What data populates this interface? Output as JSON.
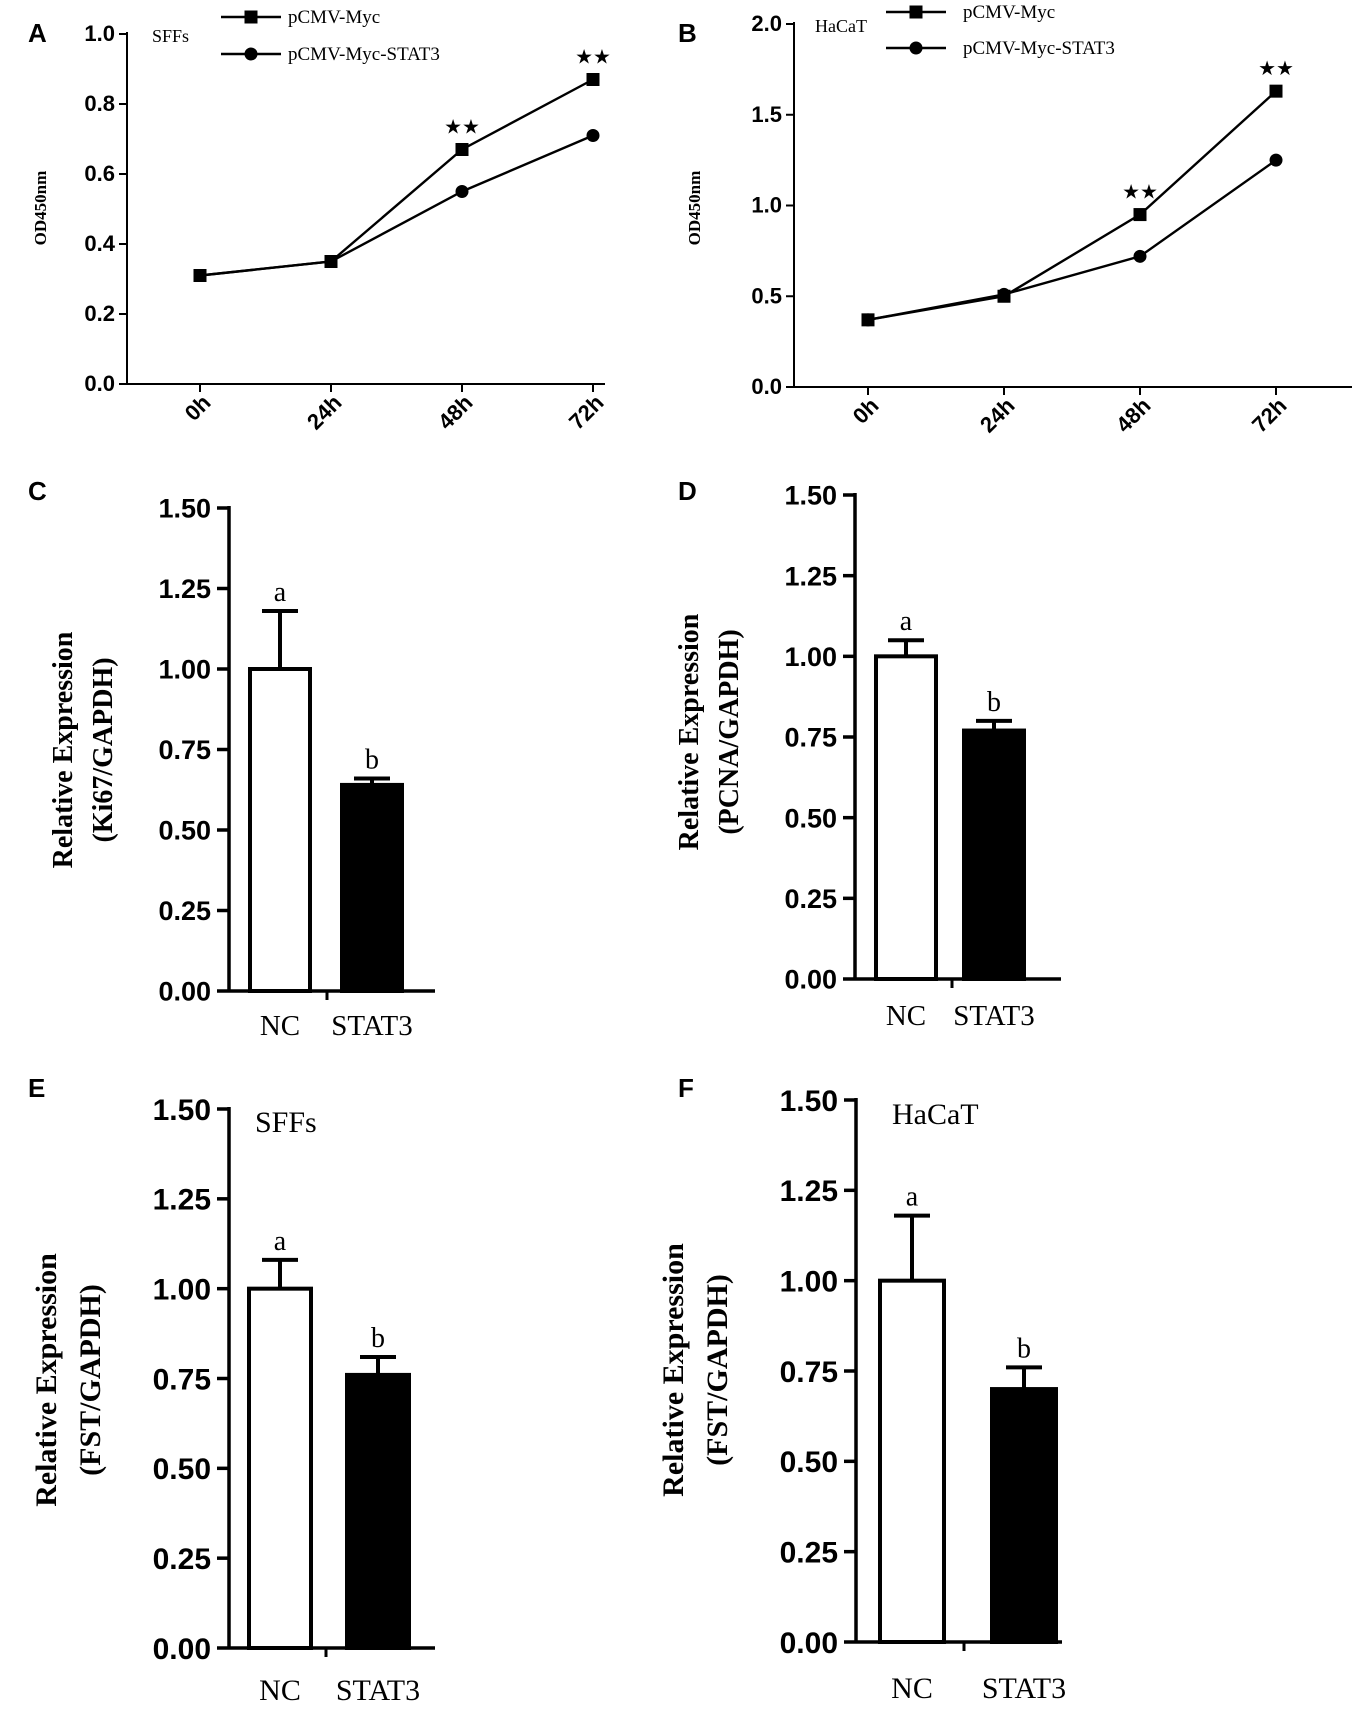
{
  "chart_data": [
    {
      "panel": "A",
      "type": "line",
      "cell_label": "SFFs",
      "categories": [
        "0h",
        "24h",
        "48h",
        "72h"
      ],
      "series": [
        {
          "name": "pCMV-Myc",
          "marker": "square",
          "values": [
            0.31,
            0.35,
            0.67,
            0.87
          ]
        },
        {
          "name": "pCMV-Myc-STAT3",
          "marker": "circle",
          "values": [
            0.31,
            0.35,
            0.55,
            0.71
          ]
        }
      ],
      "annotations": [
        {
          "category": "48h",
          "text": "★★",
          "y": 0.67
        },
        {
          "category": "72h",
          "text": "★★",
          "y": 0.87
        }
      ],
      "ylabel": "OD450nm",
      "ylim": [
        0,
        1.0
      ],
      "yticks": [
        "0.0",
        "0.2",
        "0.4",
        "0.6",
        "0.8",
        "1.0"
      ],
      "ytick_values": [
        0,
        0.2,
        0.4,
        0.6,
        0.8,
        1.0
      ]
    },
    {
      "panel": "B",
      "type": "line",
      "cell_label": "HaCaT",
      "categories": [
        "0h",
        "24h",
        "48h",
        "72h"
      ],
      "series": [
        {
          "name": "pCMV-Myc",
          "marker": "square",
          "values": [
            0.37,
            0.5,
            0.95,
            1.63
          ]
        },
        {
          "name": "pCMV-Myc-STAT3",
          "marker": "circle",
          "values": [
            0.37,
            0.51,
            0.72,
            1.25
          ]
        }
      ],
      "annotations": [
        {
          "category": "48h",
          "text": "★★",
          "y": 0.95
        },
        {
          "category": "72h",
          "text": "★★",
          "y": 1.63
        }
      ],
      "ylabel": "OD450nm",
      "ylim": [
        0,
        2.0
      ],
      "yticks": [
        "0.0",
        "0.5",
        "1.0",
        "1.5",
        "2.0"
      ],
      "ytick_values": [
        0,
        0.5,
        1.0,
        1.5,
        2.0
      ]
    },
    {
      "panel": "C",
      "type": "bar",
      "title": "",
      "categories": [
        "NC",
        "STAT3"
      ],
      "values": [
        1.0,
        0.64
      ],
      "errors": [
        0.18,
        0.02
      ],
      "letters": [
        "a",
        "b"
      ],
      "ylabel_lines": [
        "Relative Expression",
        "(Ki67/GAPDH)"
      ],
      "ylim": [
        0,
        1.5
      ],
      "yticks": [
        "0.00",
        "0.25",
        "0.50",
        "0.75",
        "1.00",
        "1.25",
        "1.50"
      ],
      "ytick_values": [
        0,
        0.25,
        0.5,
        0.75,
        1.0,
        1.25,
        1.5
      ]
    },
    {
      "panel": "D",
      "type": "bar",
      "title": "",
      "categories": [
        "NC",
        "STAT3"
      ],
      "values": [
        1.0,
        0.77
      ],
      "errors": [
        0.05,
        0.03
      ],
      "letters": [
        "a",
        "b"
      ],
      "ylabel_lines": [
        "Relative Expression",
        "(PCNA/GAPDH)"
      ],
      "ylim": [
        0,
        1.5
      ],
      "yticks": [
        "0.00",
        "0.25",
        "0.50",
        "0.75",
        "1.00",
        "1.25",
        "1.50"
      ],
      "ytick_values": [
        0,
        0.25,
        0.5,
        0.75,
        1.0,
        1.25,
        1.5
      ]
    },
    {
      "panel": "E",
      "type": "bar",
      "title": "SFFs",
      "categories": [
        "NC",
        "STAT3"
      ],
      "values": [
        1.0,
        0.76
      ],
      "errors": [
        0.08,
        0.05
      ],
      "letters": [
        "a",
        "b"
      ],
      "ylabel_lines": [
        "Relative Expression",
        "(FST/GAPDH)"
      ],
      "ylim": [
        0,
        1.5
      ],
      "yticks": [
        "0.00",
        "0.25",
        "0.50",
        "0.75",
        "1.00",
        "1.25",
        "1.50"
      ],
      "ytick_values": [
        0,
        0.25,
        0.5,
        0.75,
        1.0,
        1.25,
        1.5
      ]
    },
    {
      "panel": "F",
      "type": "bar",
      "title": "HaCaT",
      "categories": [
        "NC",
        "STAT3"
      ],
      "values": [
        1.0,
        0.7
      ],
      "errors": [
        0.18,
        0.06
      ],
      "letters": [
        "a",
        "b"
      ],
      "ylabel_lines": [
        "Relative Expression",
        "(FST/GAPDH)"
      ],
      "ylim": [
        0,
        1.5
      ],
      "yticks": [
        "0.00",
        "0.25",
        "0.50",
        "0.75",
        "1.00",
        "1.25",
        "1.50"
      ],
      "ytick_values": [
        0,
        0.25,
        0.5,
        0.75,
        1.0,
        1.25,
        1.5
      ]
    }
  ]
}
